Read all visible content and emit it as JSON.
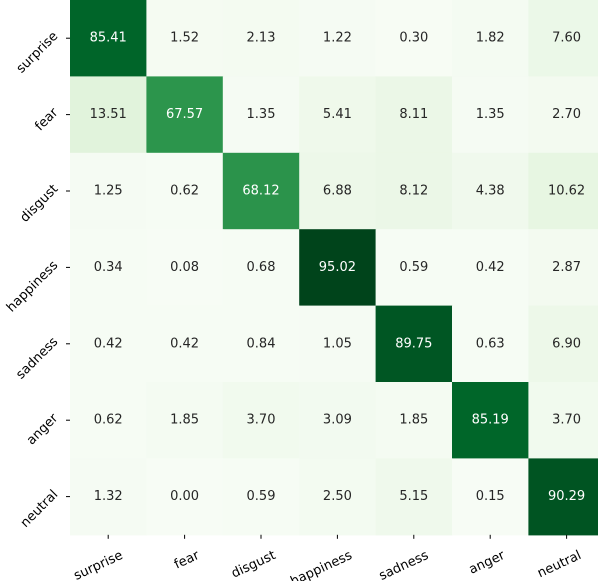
{
  "chart_data": {
    "type": "heatmap",
    "colormap": "Greens",
    "x_categories": [
      "surprise",
      "fear",
      "disgust",
      "happiness",
      "sadness",
      "anger",
      "neutral"
    ],
    "y_categories": [
      "surprise",
      "fear",
      "disgust",
      "happiness",
      "sadness",
      "anger",
      "neutral"
    ],
    "values": [
      [
        85.41,
        1.52,
        2.13,
        1.22,
        0.3,
        1.82,
        7.6
      ],
      [
        13.51,
        67.57,
        1.35,
        5.41,
        8.11,
        1.35,
        2.7
      ],
      [
        1.25,
        0.62,
        68.12,
        6.88,
        8.12,
        4.38,
        10.62
      ],
      [
        0.34,
        0.08,
        0.68,
        95.02,
        0.59,
        0.42,
        2.87
      ],
      [
        0.42,
        0.42,
        0.84,
        1.05,
        89.75,
        0.63,
        6.9
      ],
      [
        0.62,
        1.85,
        3.7,
        3.09,
        1.85,
        85.19,
        3.7
      ],
      [
        1.32,
        0.0,
        0.59,
        2.5,
        5.15,
        0.15,
        90.29
      ]
    ],
    "value_range": [
      0,
      95.02
    ],
    "title": "",
    "xlabel": "",
    "ylabel": "",
    "grid": false,
    "colorbar": false
  }
}
